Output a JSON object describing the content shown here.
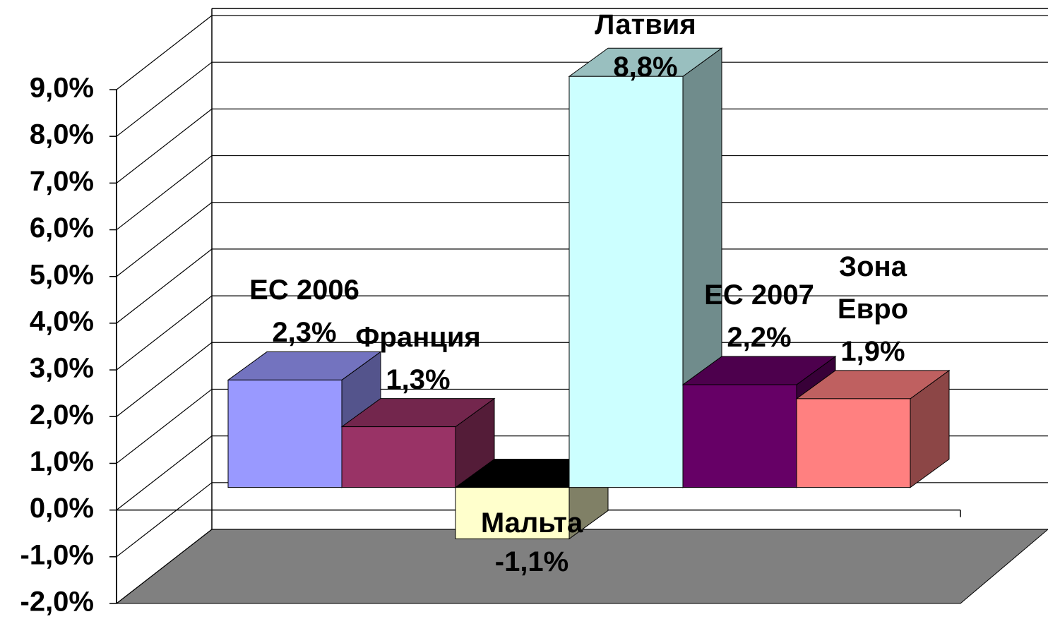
{
  "chart_data": {
    "type": "bar3d",
    "categories": [
      "ЕС 2006",
      "Франция",
      "Мальта",
      "Латвия",
      "ЕС 2007",
      "Зона\nЕвро"
    ],
    "values": [
      2.3,
      1.3,
      -1.1,
      8.8,
      2.2,
      1.9
    ],
    "value_labels": [
      "2,3%",
      "1,3%",
      "-1,1%",
      "8,8%",
      "2,2%",
      "1,9%"
    ],
    "colors": [
      "#9999ff",
      "#993366",
      "#ffffcc",
      "#ccffff",
      "#660066",
      "#ff8080"
    ],
    "ylim": [
      -2,
      9
    ],
    "yticks": [
      {
        "value": -2,
        "label": "-2,0%"
      },
      {
        "value": -1,
        "label": "-1,0%"
      },
      {
        "value": 0,
        "label": "0,0%"
      },
      {
        "value": 1,
        "label": "1,0%"
      },
      {
        "value": 2,
        "label": "2,0%"
      },
      {
        "value": 3,
        "label": "3,0%"
      },
      {
        "value": 4,
        "label": "4,0%"
      },
      {
        "value": 5,
        "label": "5,0%"
      },
      {
        "value": 6,
        "label": "6,0%"
      },
      {
        "value": 7,
        "label": "7,0%"
      },
      {
        "value": 8,
        "label": "8,0%"
      },
      {
        "value": 9,
        "label": "9,0%"
      }
    ],
    "grid": true
  }
}
